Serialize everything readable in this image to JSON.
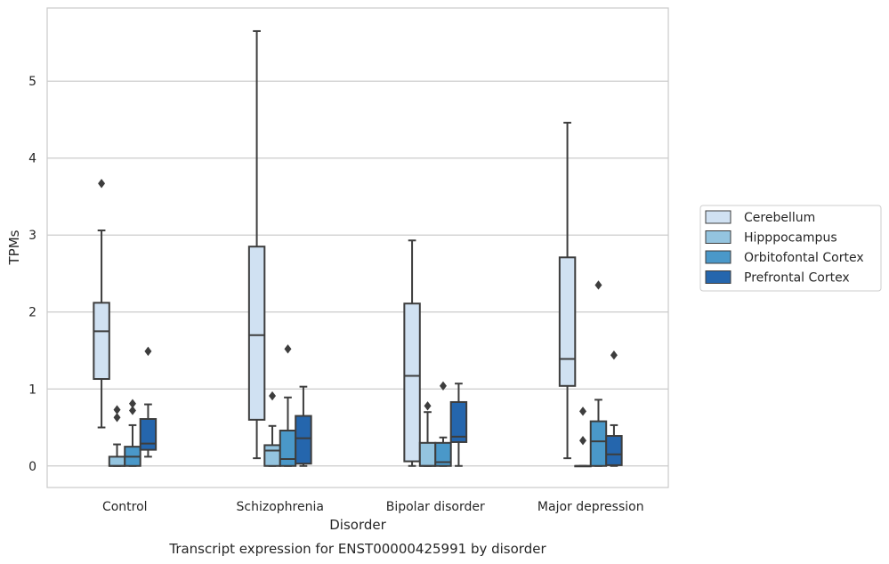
{
  "chart_data": {
    "type": "boxplot",
    "title": "",
    "caption": "Transcript expression for ENST00000425991 by disorder",
    "xlabel": "Disorder",
    "ylabel": "TPMs",
    "categories": [
      "Control",
      "Schizophrenia",
      "Bipolar disorder",
      "Major depression"
    ],
    "ylim": [
      -0.28,
      5.95
    ],
    "yticks": [
      0,
      1,
      2,
      3,
      4,
      5
    ],
    "grid": "horizontal",
    "legend_position": "right",
    "series": [
      {
        "name": "Cerebellum",
        "color": "#d0e1f2",
        "boxes": [
          {
            "whislo": 0.5,
            "q1": 1.13,
            "med": 1.75,
            "q3": 2.12,
            "whishi": 3.06,
            "fliers": [
              3.67
            ]
          },
          {
            "whislo": 0.1,
            "q1": 0.6,
            "med": 1.7,
            "q3": 2.85,
            "whishi": 5.65,
            "fliers": []
          },
          {
            "whislo": 0.0,
            "q1": 0.06,
            "med": 1.17,
            "q3": 2.11,
            "whishi": 2.93,
            "fliers": []
          },
          {
            "whislo": 0.1,
            "q1": 1.04,
            "med": 1.39,
            "q3": 2.71,
            "whishi": 4.46,
            "fliers": []
          }
        ]
      },
      {
        "name": "Hipppocampus",
        "color": "#94c4df",
        "boxes": [
          {
            "whislo": 0.0,
            "q1": 0.0,
            "med": 0.0,
            "q3": 0.12,
            "whishi": 0.28,
            "fliers": [
              0.63,
              0.73
            ]
          },
          {
            "whislo": 0.0,
            "q1": 0.0,
            "med": 0.2,
            "q3": 0.27,
            "whishi": 0.52,
            "fliers": [
              0.91
            ]
          },
          {
            "whislo": 0.0,
            "q1": 0.0,
            "med": 0.0,
            "q3": 0.3,
            "whishi": 0.7,
            "fliers": [
              0.78
            ]
          },
          {
            "whislo": 0.0,
            "q1": 0.0,
            "med": 0.0,
            "q3": 0.0,
            "whishi": 0.0,
            "fliers": [
              0.33,
              0.71
            ]
          }
        ]
      },
      {
        "name": "Orbitofontal Cortex",
        "color": "#4a98c9",
        "boxes": [
          {
            "whislo": 0.0,
            "q1": 0.0,
            "med": 0.12,
            "q3": 0.25,
            "whishi": 0.53,
            "fliers": [
              0.72,
              0.81
            ]
          },
          {
            "whislo": 0.0,
            "q1": 0.0,
            "med": 0.09,
            "q3": 0.46,
            "whishi": 0.89,
            "fliers": [
              1.52
            ]
          },
          {
            "whislo": 0.0,
            "q1": 0.0,
            "med": 0.05,
            "q3": 0.3,
            "whishi": 0.37,
            "fliers": [
              1.04
            ]
          },
          {
            "whislo": 0.0,
            "q1": 0.0,
            "med": 0.32,
            "q3": 0.58,
            "whishi": 0.86,
            "fliers": [
              2.35
            ]
          }
        ]
      },
      {
        "name": "Prefrontal Cortex",
        "color": "#2566ad",
        "boxes": [
          {
            "whislo": 0.12,
            "q1": 0.21,
            "med": 0.29,
            "q3": 0.61,
            "whishi": 0.8,
            "fliers": [
              1.49
            ]
          },
          {
            "whislo": 0.0,
            "q1": 0.03,
            "med": 0.36,
            "q3": 0.65,
            "whishi": 1.03,
            "fliers": []
          },
          {
            "whislo": 0.0,
            "q1": 0.31,
            "med": 0.38,
            "q3": 0.83,
            "whishi": 1.07,
            "fliers": []
          },
          {
            "whislo": 0.0,
            "q1": 0.01,
            "med": 0.15,
            "q3": 0.39,
            "whishi": 0.53,
            "fliers": [
              1.44
            ]
          }
        ]
      }
    ]
  }
}
